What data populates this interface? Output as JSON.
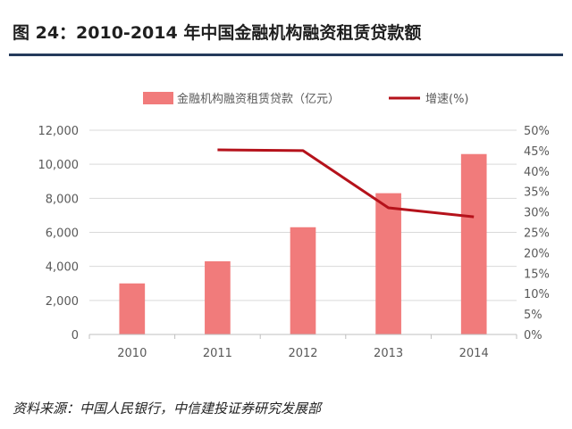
{
  "header": {
    "title": "图 24：2010-2014 年中国金融机构融资租赁贷款额"
  },
  "footer": {
    "source": "资料来源：中国人民银行，中信建投证券研究发展部"
  },
  "chart_data": {
    "type": "bar",
    "categories": [
      "2010",
      "2011",
      "2012",
      "2013",
      "2014"
    ],
    "series": [
      {
        "name": "金融机构融资租赁贷款（亿元）",
        "type": "bar",
        "axis": "left",
        "values": [
          3000,
          4300,
          6300,
          8300,
          10600
        ],
        "color": "#f17b7b"
      },
      {
        "name": "增速(%)",
        "type": "line",
        "axis": "right",
        "values": [
          null,
          45.2,
          45.0,
          31.0,
          28.8
        ],
        "color": "#b5121b"
      }
    ],
    "y_left": {
      "ylim": [
        0,
        12000
      ],
      "tick_values": [
        0,
        2000,
        4000,
        6000,
        8000,
        10000,
        12000
      ],
      "tick_labels": [
        "0",
        "2,000",
        "4,000",
        "6,000",
        "8,000",
        "10,000",
        "12,000"
      ]
    },
    "y_right": {
      "ylim": [
        0,
        50
      ],
      "tick_values": [
        0,
        5,
        10,
        15,
        20,
        25,
        30,
        35,
        40,
        45,
        50
      ],
      "tick_labels": [
        "0%",
        "5%",
        "10%",
        "15%",
        "20%",
        "25%",
        "30%",
        "35%",
        "40%",
        "45%",
        "50%"
      ]
    },
    "legend": "top-center",
    "grid": true
  }
}
